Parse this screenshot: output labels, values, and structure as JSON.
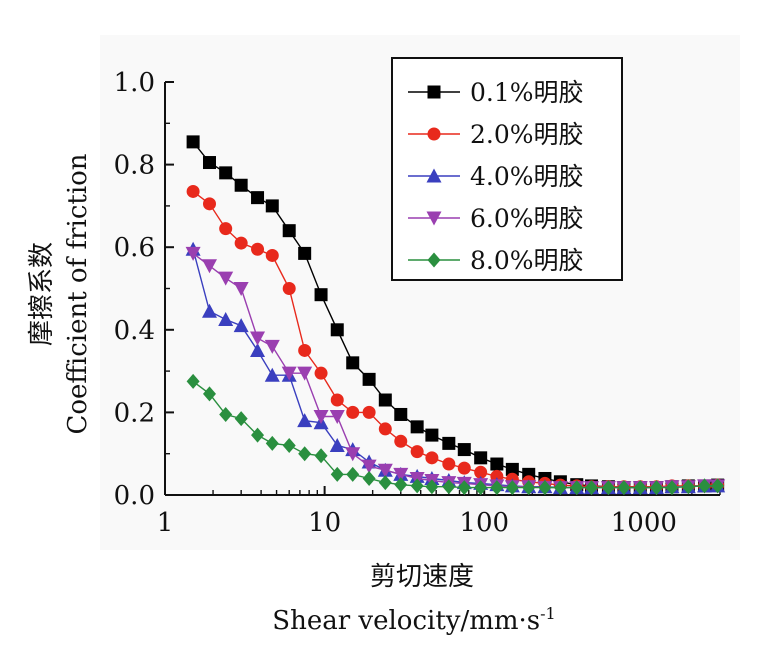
{
  "chart_data": {
    "type": "line",
    "x_scale": "log",
    "xlim": [
      1,
      3000
    ],
    "ylim": [
      0.0,
      1.0
    ],
    "x_ticks": [
      "1",
      "10",
      "100",
      "1000"
    ],
    "y_ticks": [
      "0.0",
      "0.2",
      "0.4",
      "0.6",
      "0.8",
      "1.0"
    ],
    "ylabel_cn": "摩擦系数",
    "ylabel_en": "Coefficient of friction",
    "xlabel_cn": "剪切速度",
    "xlabel_en": "Shear velocity/mm·s",
    "xlabel_sup": "-1",
    "legend_position": "top-right",
    "series": [
      {
        "name": "0.1%明胶",
        "color": "#000000",
        "marker": "square",
        "x": [
          1.5,
          1.9,
          2.4,
          3.0,
          3.8,
          4.7,
          6.0,
          7.5,
          9.5,
          12,
          15,
          19,
          24,
          30,
          38,
          47,
          60,
          75,
          95,
          120,
          150,
          190,
          240,
          300,
          380,
          470,
          600,
          750,
          950,
          1200,
          1500,
          1900,
          2400,
          2900
        ],
        "y": [
          0.855,
          0.805,
          0.78,
          0.75,
          0.72,
          0.7,
          0.64,
          0.585,
          0.485,
          0.4,
          0.32,
          0.28,
          0.23,
          0.195,
          0.165,
          0.145,
          0.125,
          0.11,
          0.09,
          0.075,
          0.062,
          0.05,
          0.04,
          0.032,
          0.025,
          0.022,
          0.02,
          0.018,
          0.018,
          0.018,
          0.02,
          0.022,
          0.022,
          0.024
        ]
      },
      {
        "name": "2.0%明胶",
        "color": "#e8291c",
        "marker": "circle",
        "x": [
          1.5,
          1.9,
          2.4,
          3.0,
          3.8,
          4.7,
          6.0,
          7.5,
          9.5,
          12,
          15,
          19,
          24,
          30,
          38,
          47,
          60,
          75,
          95,
          120,
          150,
          190,
          240,
          300,
          380,
          470,
          600,
          750,
          950,
          1200,
          1500,
          1900,
          2400,
          2900
        ],
        "y": [
          0.735,
          0.705,
          0.645,
          0.61,
          0.595,
          0.58,
          0.5,
          0.35,
          0.295,
          0.23,
          0.2,
          0.2,
          0.16,
          0.13,
          0.105,
          0.09,
          0.075,
          0.065,
          0.055,
          0.045,
          0.038,
          0.032,
          0.028,
          0.024,
          0.022,
          0.02,
          0.02,
          0.02,
          0.02,
          0.02,
          0.022,
          0.022,
          0.022,
          0.024
        ]
      },
      {
        "name": "4.0%明胶",
        "color": "#3a3fbf",
        "marker": "triangle-up",
        "x": [
          1.5,
          1.9,
          2.4,
          3.0,
          3.8,
          4.7,
          6.0,
          7.5,
          9.5,
          12,
          15,
          19,
          24,
          30,
          38,
          47,
          60,
          75,
          95,
          120,
          150,
          190,
          240,
          300,
          380,
          470,
          600,
          750,
          950,
          1200,
          1500,
          1900,
          2400,
          2900
        ],
        "y": [
          0.595,
          0.445,
          0.425,
          0.41,
          0.35,
          0.29,
          0.29,
          0.18,
          0.175,
          0.12,
          0.11,
          0.08,
          0.06,
          0.05,
          0.045,
          0.04,
          0.035,
          0.03,
          0.028,
          0.025,
          0.022,
          0.02,
          0.02,
          0.018,
          0.018,
          0.018,
          0.018,
          0.018,
          0.018,
          0.018,
          0.02,
          0.02,
          0.022,
          0.022
        ]
      },
      {
        "name": "6.0%明胶",
        "color": "#9a3fb0",
        "marker": "triangle-down",
        "x": [
          1.5,
          1.9,
          2.4,
          3.0,
          3.8,
          4.7,
          6.0,
          7.5,
          9.5,
          12,
          15,
          19,
          24,
          30,
          38,
          47,
          60,
          75,
          95,
          120,
          150,
          190,
          240,
          300,
          380,
          470,
          600,
          750,
          950,
          1200,
          1500,
          1900,
          2400,
          2900
        ],
        "y": [
          0.585,
          0.555,
          0.525,
          0.5,
          0.38,
          0.36,
          0.295,
          0.295,
          0.19,
          0.19,
          0.1,
          0.07,
          0.06,
          0.05,
          0.04,
          0.035,
          0.03,
          0.028,
          0.025,
          0.022,
          0.02,
          0.02,
          0.018,
          0.018,
          0.018,
          0.018,
          0.018,
          0.018,
          0.018,
          0.018,
          0.02,
          0.02,
          0.022,
          0.022
        ]
      },
      {
        "name": "8.0%明胶",
        "color": "#2a8f3f",
        "marker": "diamond",
        "x": [
          1.5,
          1.9,
          2.4,
          3.0,
          3.8,
          4.7,
          6.0,
          7.5,
          9.5,
          12,
          15,
          19,
          24,
          30,
          38,
          47,
          60,
          75,
          95,
          120,
          150,
          190,
          240,
          300,
          380,
          470,
          600,
          750,
          950,
          1200,
          1500,
          1900,
          2400,
          2900
        ],
        "y": [
          0.275,
          0.245,
          0.195,
          0.185,
          0.145,
          0.125,
          0.12,
          0.1,
          0.095,
          0.05,
          0.05,
          0.04,
          0.03,
          0.025,
          0.022,
          0.02,
          0.02,
          0.018,
          0.018,
          0.018,
          0.018,
          0.018,
          0.018,
          0.018,
          0.018,
          0.018,
          0.018,
          0.018,
          0.018,
          0.018,
          0.018,
          0.02,
          0.022,
          0.022
        ]
      }
    ]
  }
}
